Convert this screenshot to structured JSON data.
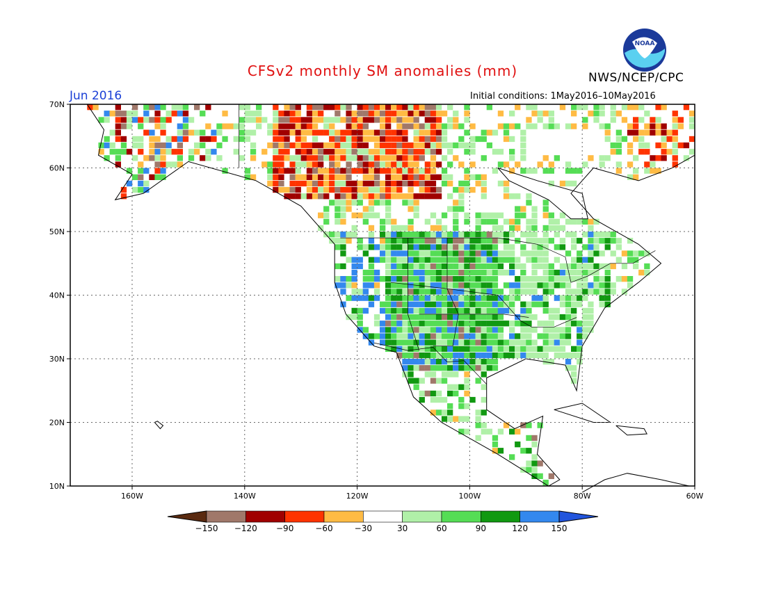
{
  "title": "CFSv2 monthly SM anomalies (mm)",
  "agency": "NWS/NCEP/CPC",
  "logo_text": "NOAA",
  "forecast_month": "Jun 2016",
  "initial_conditions": "Initial conditions: 1May2016–10May2016",
  "map": {
    "lat_labels": [
      "70N",
      "60N",
      "50N",
      "40N",
      "30N",
      "20N",
      "10N"
    ],
    "lon_labels": [
      "160W",
      "140W",
      "120W",
      "100W",
      "80W",
      "60W"
    ],
    "lat_values": [
      70,
      60,
      50,
      40,
      30,
      20,
      10
    ],
    "lon_values": [
      -160,
      -140,
      -120,
      -100,
      -80,
      -60
    ],
    "lon_range": [
      -171,
      -60
    ],
    "lat_range": [
      10,
      70
    ]
  },
  "legend": {
    "labels": [
      "−150",
      "−120",
      "−90",
      "−60",
      "−30",
      "30",
      "60",
      "90",
      "120",
      "150"
    ],
    "colors": [
      "#5a2a10",
      "#a0786a",
      "#a00000",
      "#ff3300",
      "#ffbb44",
      "#ffffff",
      "#b0f0a8",
      "#55dd55",
      "#119911",
      "#3388ee",
      "#2255dd"
    ]
  },
  "anomaly_colors": {
    "lt_-150": "#5a2a10",
    "-150_-120": "#a0786a",
    "-120_-90": "#a00000",
    "-90_-60": "#ff3300",
    "-60_-30": "#ffbb44",
    "-30_30": "#ffffff",
    "30_60": "#b0f0a8",
    "60_90": "#55dd55",
    "90_120": "#119911",
    "120_150": "#3388ee",
    "gt_150": "#2255dd"
  }
}
